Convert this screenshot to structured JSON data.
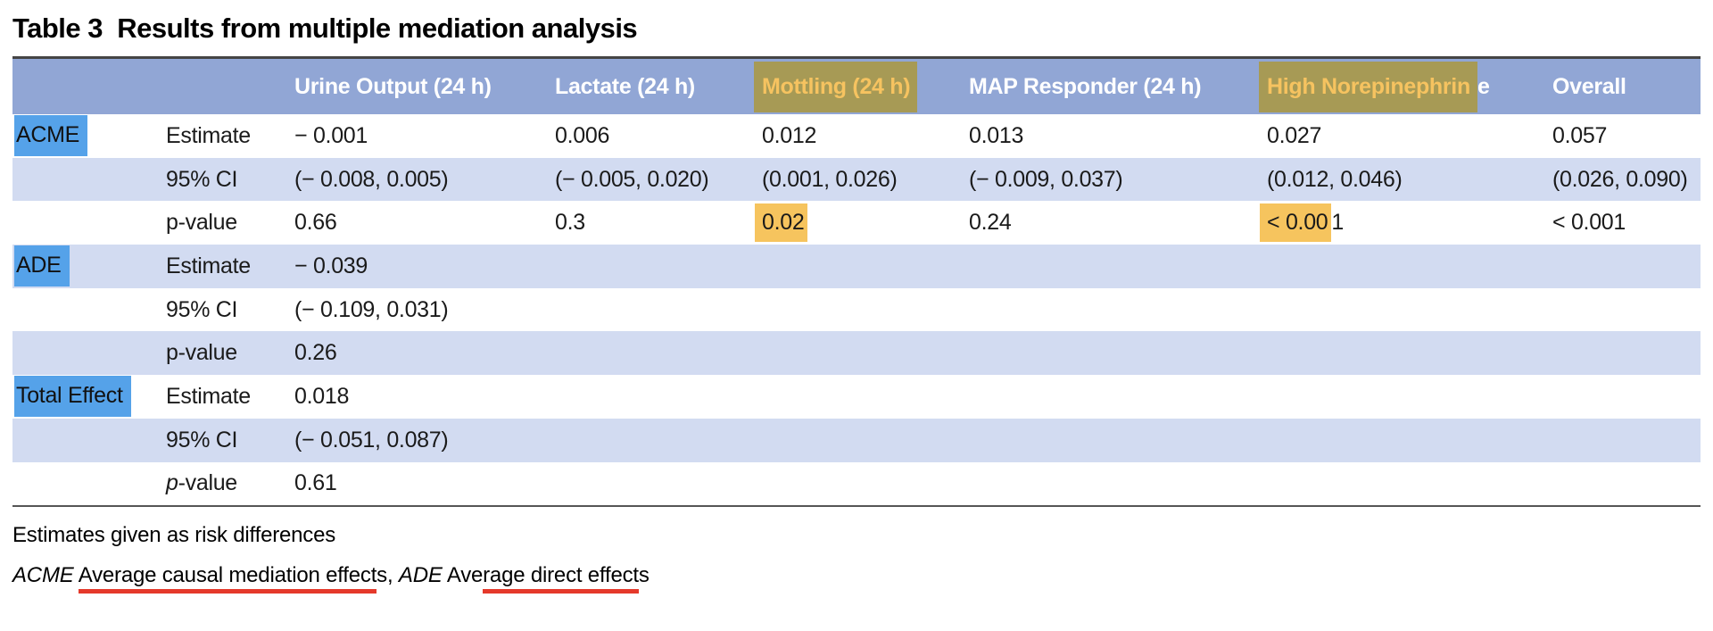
{
  "title": "Table 3  Results from multiple mediation analysis",
  "colors": {
    "header_bg": "#91a6d5",
    "row_stripe": "#d2dbf1",
    "group_label_highlight": "#55a2e9",
    "header_highlight_bg": "#a79a55",
    "header_highlight_text": "#f6c360",
    "pvalue_highlight": "#f6c45e",
    "annotation_underline": "#e5392b"
  },
  "table": {
    "columns": [
      {
        "parts": [
          {
            "t": ""
          }
        ]
      },
      {
        "parts": [
          {
            "t": ""
          }
        ]
      },
      {
        "parts": [
          {
            "t": "Urine Output (24 h)"
          }
        ]
      },
      {
        "parts": [
          {
            "t": "Lactate (24 h)"
          }
        ]
      },
      {
        "parts": [
          {
            "t": "Mottling (24 h)",
            "hl": true
          }
        ]
      },
      {
        "parts": [
          {
            "t": "MAP Responder (24 h)"
          }
        ]
      },
      {
        "parts": [
          {
            "t": "High Norepinephrin",
            "hl": true
          },
          {
            "t": "e"
          }
        ]
      },
      {
        "parts": [
          {
            "t": "Overall"
          }
        ]
      }
    ],
    "rows": [
      {
        "group": "ACME",
        "shaded": false,
        "stat_parts": [
          {
            "t": "Estimate"
          }
        ],
        "cells": [
          [
            {
              "t": "− 0.001"
            }
          ],
          [
            {
              "t": "0.006"
            }
          ],
          [
            {
              "t": "0.012"
            }
          ],
          [
            {
              "t": "0.013"
            }
          ],
          [
            {
              "t": "0.027"
            }
          ],
          [
            {
              "t": "0.057"
            }
          ]
        ]
      },
      {
        "group": "",
        "shaded": true,
        "stat_parts": [
          {
            "t": "95% CI"
          }
        ],
        "cells": [
          [
            {
              "t": "(− 0.008, 0.005)"
            }
          ],
          [
            {
              "t": "(− 0.005, 0.020)"
            }
          ],
          [
            {
              "t": "(0.001, 0.026)"
            }
          ],
          [
            {
              "t": "(− 0.009, 0.037)"
            }
          ],
          [
            {
              "t": "(0.012, 0.046)"
            }
          ],
          [
            {
              "t": "(0.026, 0.090)"
            }
          ]
        ]
      },
      {
        "group": "",
        "shaded": false,
        "stat_parts": [
          {
            "t": "p-value"
          }
        ],
        "cells": [
          [
            {
              "t": "0.66"
            }
          ],
          [
            {
              "t": "0.3"
            }
          ],
          [
            {
              "t": "0.02",
              "hl": true
            }
          ],
          [
            {
              "t": "0.24"
            }
          ],
          [
            {
              "t": "< 0.00",
              "hl": true
            },
            {
              "t": "1"
            }
          ],
          [
            {
              "t": "< 0.001"
            }
          ]
        ]
      },
      {
        "group": "ADE",
        "shaded": true,
        "stat_parts": [
          {
            "t": "Estimate"
          }
        ],
        "cells": [
          [
            {
              "t": "− 0.039"
            }
          ],
          [],
          [],
          [],
          [],
          []
        ]
      },
      {
        "group": "",
        "shaded": false,
        "stat_parts": [
          {
            "t": "95% CI"
          }
        ],
        "cells": [
          [
            {
              "t": "(− 0.109, 0.031)"
            }
          ],
          [],
          [],
          [],
          [],
          []
        ]
      },
      {
        "group": "",
        "shaded": true,
        "stat_parts": [
          {
            "t": "p-value"
          }
        ],
        "cells": [
          [
            {
              "t": "0.26"
            }
          ],
          [],
          [],
          [],
          [],
          []
        ]
      },
      {
        "group": "Total Effect",
        "shaded": false,
        "stat_parts": [
          {
            "t": "Estimate"
          }
        ],
        "cells": [
          [
            {
              "t": "0.018"
            }
          ],
          [],
          [],
          [],
          [],
          []
        ]
      },
      {
        "group": "",
        "shaded": true,
        "stat_parts": [
          {
            "t": "95% CI"
          }
        ],
        "cells": [
          [
            {
              "t": "(− 0.051, 0.087)"
            }
          ],
          [],
          [],
          [],
          [],
          []
        ]
      },
      {
        "group": "",
        "shaded": false,
        "stat_parts": [
          {
            "t": "p",
            "i": true
          },
          {
            "t": "-value"
          }
        ],
        "cells": [
          [
            {
              "t": "0.61"
            }
          ],
          [],
          [],
          [],
          [],
          []
        ]
      }
    ]
  },
  "footnotes": {
    "line1": "Estimates given as risk differences",
    "line2_parts": [
      {
        "t": "ACME",
        "i": true
      },
      {
        "t": " "
      },
      {
        "t": "Average causal mediation effect",
        "u": true
      },
      {
        "t": "s, "
      },
      {
        "t": "ADE",
        "i": true
      },
      {
        "t": " Ave"
      },
      {
        "t": "rage direct effect",
        "u": true
      },
      {
        "t": "s"
      }
    ]
  }
}
